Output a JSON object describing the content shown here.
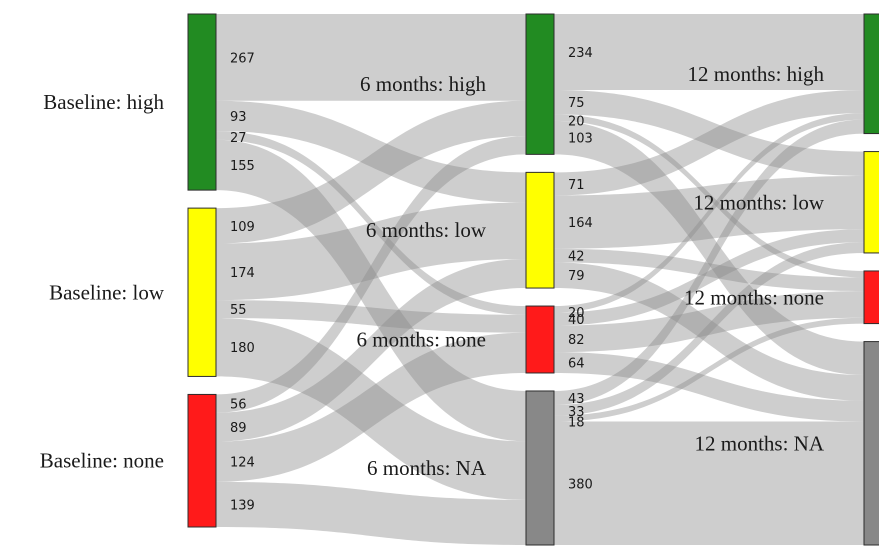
{
  "stages": [
    {
      "nodes": [
        {
          "label": "Baseline: high",
          "color": "#228b22"
        },
        {
          "label": "Baseline: low",
          "color": "#ffff00"
        },
        {
          "label": "Baseline: none",
          "color": "#ff1a1a"
        }
      ]
    },
    {
      "nodes": [
        {
          "label": "6 months: high",
          "color": "#228b22"
        },
        {
          "label": "6 months: low",
          "color": "#ffff00"
        },
        {
          "label": "6 months: none",
          "color": "#ff1a1a"
        },
        {
          "label": "6 months: NA",
          "color": "#888888"
        }
      ]
    },
    {
      "nodes": [
        {
          "label": "12 months: high",
          "color": "#228b22"
        },
        {
          "label": "12 months: low",
          "color": "#ffff00"
        },
        {
          "label": "12 months: none",
          "color": "#ff1a1a"
        },
        {
          "label": "12 months: NA",
          "color": "#888888"
        }
      ]
    }
  ],
  "flows": [
    {
      "from": [
        0,
        0
      ],
      "to": [
        1,
        0
      ],
      "value": 267,
      "label": "267"
    },
    {
      "from": [
        0,
        0
      ],
      "to": [
        1,
        1
      ],
      "value": 93,
      "label": "93"
    },
    {
      "from": [
        0,
        0
      ],
      "to": [
        1,
        2
      ],
      "value": 27,
      "label": "27"
    },
    {
      "from": [
        0,
        0
      ],
      "to": [
        1,
        3
      ],
      "value": 155,
      "label": "155"
    },
    {
      "from": [
        0,
        1
      ],
      "to": [
        1,
        0
      ],
      "value": 109,
      "label": "109"
    },
    {
      "from": [
        0,
        1
      ],
      "to": [
        1,
        1
      ],
      "value": 174,
      "label": "174"
    },
    {
      "from": [
        0,
        1
      ],
      "to": [
        1,
        2
      ],
      "value": 55,
      "label": "55"
    },
    {
      "from": [
        0,
        1
      ],
      "to": [
        1,
        3
      ],
      "value": 180,
      "label": "180"
    },
    {
      "from": [
        0,
        2
      ],
      "to": [
        1,
        0
      ],
      "value": 56,
      "label": "56"
    },
    {
      "from": [
        0,
        2
      ],
      "to": [
        1,
        1
      ],
      "value": 89,
      "label": "89"
    },
    {
      "from": [
        0,
        2
      ],
      "to": [
        1,
        2
      ],
      "value": 124,
      "label": "124"
    },
    {
      "from": [
        0,
        2
      ],
      "to": [
        1,
        3
      ],
      "value": 139,
      "label": "139"
    },
    {
      "from": [
        1,
        0
      ],
      "to": [
        2,
        0
      ],
      "value": 234,
      "label": "234"
    },
    {
      "from": [
        1,
        0
      ],
      "to": [
        2,
        1
      ],
      "value": 75,
      "label": "75"
    },
    {
      "from": [
        1,
        0
      ],
      "to": [
        2,
        2
      ],
      "value": 20,
      "label": "20"
    },
    {
      "from": [
        1,
        0
      ],
      "to": [
        2,
        3
      ],
      "value": 103,
      "label": "103"
    },
    {
      "from": [
        1,
        1
      ],
      "to": [
        2,
        0
      ],
      "value": 71,
      "label": "71"
    },
    {
      "from": [
        1,
        1
      ],
      "to": [
        2,
        1
      ],
      "value": 164,
      "label": "164"
    },
    {
      "from": [
        1,
        1
      ],
      "to": [
        2,
        2
      ],
      "value": 42,
      "label": "42"
    },
    {
      "from": [
        1,
        1
      ],
      "to": [
        2,
        3
      ],
      "value": 79,
      "label": "79"
    },
    {
      "from": [
        1,
        2
      ],
      "to": [
        2,
        0
      ],
      "value": 20,
      "label": "20"
    },
    {
      "from": [
        1,
        2
      ],
      "to": [
        2,
        1
      ],
      "value": 40,
      "label": "40"
    },
    {
      "from": [
        1,
        2
      ],
      "to": [
        2,
        2
      ],
      "value": 82,
      "label": "82"
    },
    {
      "from": [
        1,
        2
      ],
      "to": [
        2,
        3
      ],
      "value": 64,
      "label": "64"
    },
    {
      "from": [
        1,
        3
      ],
      "to": [
        2,
        0
      ],
      "value": 43,
      "label": "43"
    },
    {
      "from": [
        1,
        3
      ],
      "to": [
        2,
        1
      ],
      "value": 33,
      "label": "33"
    },
    {
      "from": [
        1,
        3
      ],
      "to": [
        2,
        2
      ],
      "value": 18,
      "label": "18"
    },
    {
      "from": [
        1,
        3
      ],
      "to": [
        2,
        3
      ],
      "value": 380,
      "label": "380"
    }
  ]
}
